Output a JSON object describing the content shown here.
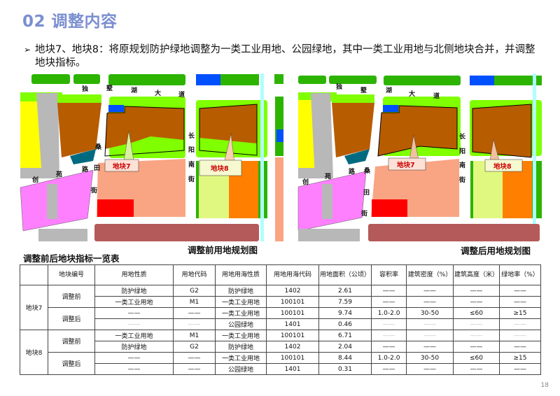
{
  "title": "02 调整内容",
  "bullet": {
    "icon": "arrow-bullet-icon",
    "text": "地块7、地块8：将原规划防护绿地调整为一类工业用地、公园绿地，其中一类工业用地与北侧地块合并，并调整地块指标。"
  },
  "maps": {
    "road_labels": {
      "dushuhu": [
        "独",
        "墅",
        "湖",
        "大",
        "道"
      ],
      "changyang": [
        "长",
        "阳",
        "南",
        "街"
      ],
      "sangtian": [
        "桑",
        "田",
        "街"
      ],
      "chuangyuan": [
        "创",
        "苑",
        "路"
      ]
    },
    "plot7": "地块7",
    "plot8": "地块8",
    "before_caption": "调整前用地规划图",
    "after_caption": "调整后用地规划图",
    "colors": {
      "industrial_m1": "#b85c00",
      "protective_green": "#80ff00",
      "park_green": "#2db400",
      "commercial": "#f9a583",
      "residential_yellow": "#ffff00",
      "education_magenta": "#ff80ff",
      "water_cyan": "#b0ffff",
      "red_block": "#ff0000",
      "orange_block": "#ff8000",
      "lightyellow_block": "#e0f880",
      "maroon_block": "#b45a5a",
      "blue_block": "#0050ff",
      "teal_block": "#006b80",
      "gray_block": "#b8b8b8"
    }
  },
  "table": {
    "caption": "调整前后地块指标一览表",
    "headers": [
      "",
      "地块编号",
      "用地性质",
      "用地代码",
      "用地用海性质",
      "用地用海代码",
      "用地面积（公顷）",
      "容积率",
      "建筑密度（%）",
      "建筑高度（米）",
      "绿地率（%）"
    ],
    "groups": [
      {
        "plot": "地块7",
        "phases": [
          {
            "phase": "调整前",
            "rows": [
              {
                "cells": [
                  "防护绿地",
                  "G2",
                  "防护绿地",
                  "1402",
                  "2.61",
                  "——",
                  "——",
                  "——",
                  "——"
                ],
                "faint": false
              },
              {
                "cells": [
                  "一类工业用地",
                  "M1",
                  "一类工业用地",
                  "100101",
                  "7.59",
                  "——",
                  "——",
                  "——",
                  "——"
                ],
                "faint": false
              }
            ]
          },
          {
            "phase": "调整后",
            "rows": [
              {
                "cells": [
                  "——",
                  "——",
                  "一类工业用地",
                  "100101",
                  "9.74",
                  "1.0-2.0",
                  "30-50",
                  "≤60",
                  "≥15"
                ],
                "faint": false
              },
              {
                "cells": [
                  "——",
                  "——",
                  "公园绿地",
                  "1401",
                  "0.46",
                  "——",
                  "——",
                  "——",
                  "——"
                ],
                "faint": true
              }
            ]
          }
        ]
      },
      {
        "plot": "地块8",
        "phases": [
          {
            "phase": "调整前",
            "rows": [
              {
                "cells": [
                  "一类工业用地",
                  "M1",
                  "一类工业用地",
                  "100101",
                  "6.71",
                  "——",
                  "——",
                  "——",
                  "——"
                ],
                "faint": true
              },
              {
                "cells": [
                  "防护绿地",
                  "G2",
                  "防护绿地",
                  "1402",
                  "2.04",
                  "——",
                  "——",
                  "——",
                  "——"
                ],
                "faint": false
              }
            ]
          },
          {
            "phase": "调整后",
            "rows": [
              {
                "cells": [
                  "——",
                  "——",
                  "一类工业用地",
                  "100101",
                  "8.44",
                  "1.0-2.0",
                  "30-50",
                  "≤60",
                  "≥15"
                ],
                "faint": false
              },
              {
                "cells": [
                  "——",
                  "——",
                  "公园绿地",
                  "1401",
                  "0.31",
                  "——",
                  "——",
                  "——",
                  "——"
                ],
                "faint": false
              }
            ]
          }
        ]
      }
    ]
  },
  "page_number": "18"
}
